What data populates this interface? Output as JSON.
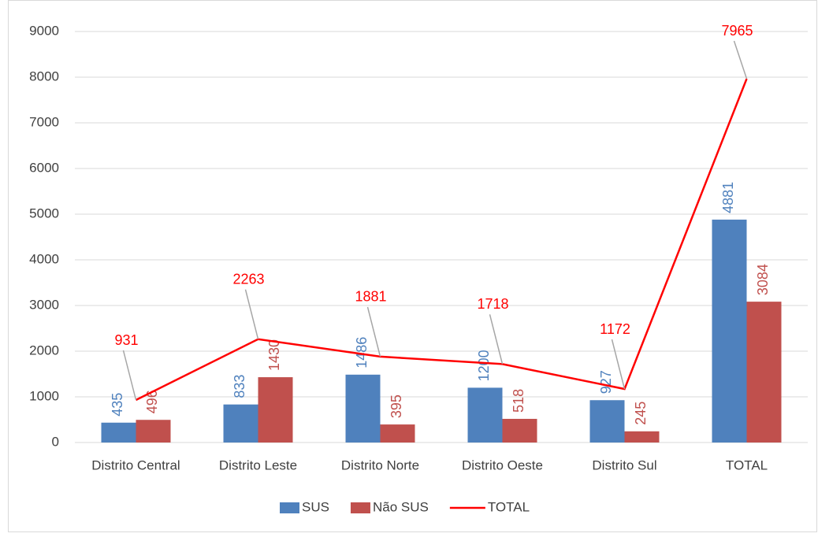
{
  "chart_data": {
    "type": "bar",
    "categories": [
      "Distrito Central",
      "Distrito Leste",
      "Distrito Norte",
      "Distrito Oeste",
      "Distrito Sul",
      "TOTAL"
    ],
    "series": [
      {
        "name": "SUS",
        "color": "#4f81bd",
        "type": "bar",
        "values": [
          435,
          833,
          1486,
          1200,
          927,
          4881
        ]
      },
      {
        "name": "Não SUS",
        "color": "#c0504d",
        "type": "bar",
        "values": [
          496,
          1430,
          395,
          518,
          245,
          3084
        ]
      },
      {
        "name": "TOTAL",
        "color": "#ff0000",
        "type": "line",
        "values": [
          931,
          2263,
          1881,
          1718,
          1172,
          7965
        ]
      }
    ],
    "ylim": [
      0,
      9000
    ],
    "yticks": [
      0,
      1000,
      2000,
      3000,
      4000,
      5000,
      6000,
      7000,
      8000,
      9000
    ],
    "grid": true,
    "legend": "bottom"
  }
}
